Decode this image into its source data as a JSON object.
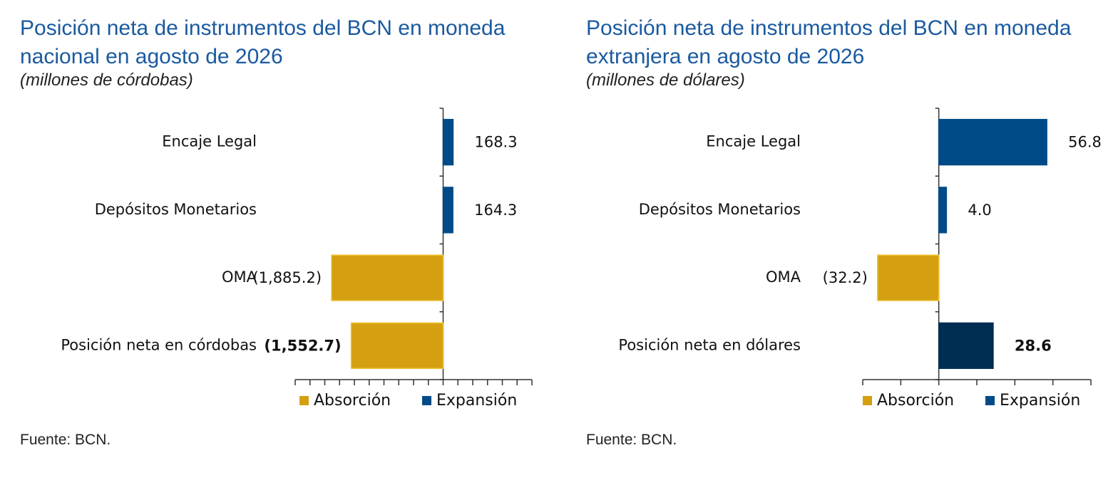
{
  "colors": {
    "absorcion": "#d4a012",
    "expansion": "#004b87",
    "net_expansion": "#002d52",
    "title": "#1a5aa0"
  },
  "charts": [
    {
      "title": "Posición neta de instrumentos del BCN en moneda nacional en agosto de 2026",
      "subtitle": "(millones de córdobas)",
      "source": "Fuente: BCN.",
      "legend": [
        "Absorción",
        "Expansión"
      ]
    },
    {
      "title": "Posición neta de instrumentos del BCN en moneda extranjera en agosto de 2026",
      "subtitle": "(millones de dólares)",
      "source": "Fuente: BCN.",
      "legend": [
        "Absorción",
        "Expansión"
      ]
    }
  ],
  "chart_data": [
    {
      "type": "bar",
      "orientation": "horizontal",
      "categories": [
        "Encaje Legal",
        "Depósitos Monetarios",
        "OMA",
        "Posición neta en córdobas"
      ],
      "values": [
        168.3,
        164.3,
        -1885.2,
        -1552.7
      ],
      "labels": [
        "168.3",
        "164.3",
        "(1,885.2)",
        "(1,552.7)"
      ],
      "series_kind": [
        "expansion",
        "expansion",
        "absorcion",
        "absorcion"
      ],
      "bold": [
        false,
        false,
        false,
        true
      ],
      "xlim": [
        -2500,
        1500
      ],
      "tick_step": 250,
      "legend_position": "bottom"
    },
    {
      "type": "bar",
      "orientation": "horizontal",
      "categories": [
        "Encaje Legal",
        "Depósitos Monetarios",
        "OMA",
        "Posición neta en dólares"
      ],
      "values": [
        56.8,
        4.0,
        -32.2,
        28.6
      ],
      "labels": [
        "56.8",
        "4.0",
        "(32.2)",
        "28.6"
      ],
      "series_kind": [
        "expansion",
        "expansion",
        "absorcion",
        "net_expansion"
      ],
      "bold": [
        false,
        false,
        false,
        true
      ],
      "xlim": [
        -40,
        80
      ],
      "tick_step": 20,
      "legend_position": "bottom"
    }
  ]
}
